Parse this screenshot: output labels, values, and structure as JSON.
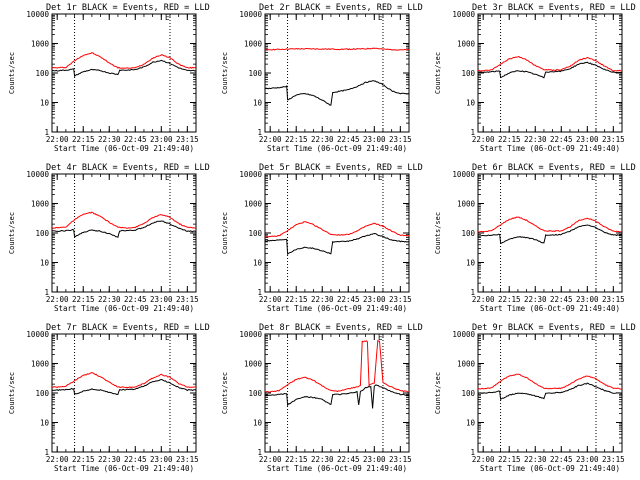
{
  "chart_data": [
    {
      "type": "line",
      "title": "Det 1r BLACK = Events, RED = LLD",
      "marker": "E",
      "xlabel": "Start Time (06-Oct-09 21:49:40)",
      "ylabel": "Counts/sec",
      "xticks": [
        "22:00",
        "22:15",
        "22:30",
        "22:45",
        "23:00",
        "23:15"
      ],
      "yticks": [
        "1",
        "10",
        "100",
        "1000",
        "10000"
      ],
      "yscale": "log",
      "ylim": [
        1,
        10000
      ],
      "xlim_min": [
        7,
        90
      ],
      "vlines_min": [
        20,
        75
      ],
      "series": [
        {
          "color": "#ff0000",
          "x": [
            7,
            10,
            15,
            20,
            25,
            30,
            35,
            40,
            45,
            50,
            55,
            60,
            65,
            70,
            75,
            80,
            85,
            90
          ],
          "y": [
            150,
            150,
            155,
            260,
            400,
            480,
            350,
            220,
            150,
            145,
            150,
            200,
            320,
            410,
            330,
            200,
            150,
            150
          ]
        },
        {
          "color": "#000000",
          "x": [
            7,
            10,
            15,
            19.5,
            20,
            25,
            30,
            35,
            40,
            45,
            46,
            50,
            55,
            60,
            65,
            70,
            75,
            80,
            85,
            90
          ],
          "y": [
            120,
            120,
            125,
            135,
            80,
            110,
            130,
            120,
            100,
            90,
            125,
            125,
            130,
            160,
            230,
            270,
            210,
            150,
            120,
            120
          ]
        }
      ]
    },
    {
      "type": "line",
      "title": "Det 2r BLACK = Events, RED = LLD",
      "marker": "E",
      "xlabel": "Start Time (06-Oct-09 21:49:40)",
      "ylabel": "Counts/sec",
      "xticks": [
        "22:00",
        "22:15",
        "22:30",
        "22:45",
        "23:00",
        "23:15"
      ],
      "yticks": [
        "1",
        "10",
        "100",
        "1000",
        "10000"
      ],
      "yscale": "log",
      "ylim": [
        1,
        10000
      ],
      "xlim_min": [
        7,
        90
      ],
      "vlines_min": [
        20,
        75
      ],
      "series": [
        {
          "color": "#ff0000",
          "x": [
            7,
            15,
            20,
            30,
            40,
            50,
            60,
            65,
            70,
            75,
            80,
            90
          ],
          "y": [
            620,
            630,
            650,
            660,
            650,
            640,
            650,
            660,
            700,
            640,
            620,
            610
          ]
        },
        {
          "color": "#000000",
          "x": [
            7,
            10,
            15,
            19.5,
            20,
            25,
            30,
            35,
            40,
            45,
            46,
            50,
            55,
            60,
            65,
            70,
            75,
            80,
            85,
            90
          ],
          "y": [
            30,
            30,
            32,
            35,
            12,
            18,
            20,
            17,
            12,
            8,
            22,
            24,
            27,
            35,
            48,
            55,
            40,
            25,
            20,
            20
          ]
        }
      ]
    },
    {
      "type": "line",
      "title": "Det 3r BLACK = Events, RED = LLD",
      "marker": "E",
      "xlabel": "Start Time (06-Oct-09 21:49:40)",
      "ylabel": "Counts/sec",
      "xticks": [
        "22:00",
        "22:15",
        "22:30",
        "22:45",
        "23:00",
        "23:15"
      ],
      "yticks": [
        "1",
        "10",
        "100",
        "1000",
        "10000"
      ],
      "yscale": "log",
      "ylim": [
        1,
        10000
      ],
      "xlim_min": [
        7,
        90
      ],
      "vlines_min": [
        20,
        75
      ],
      "series": [
        {
          "color": "#ff0000",
          "x": [
            7,
            10,
            15,
            20,
            25,
            30,
            35,
            40,
            45,
            50,
            55,
            60,
            65,
            70,
            75,
            80,
            85,
            90
          ],
          "y": [
            120,
            120,
            130,
            200,
            300,
            360,
            280,
            180,
            130,
            125,
            130,
            170,
            270,
            330,
            260,
            170,
            120,
            120
          ]
        },
        {
          "color": "#000000",
          "x": [
            7,
            10,
            15,
            19.5,
            20,
            25,
            30,
            35,
            40,
            45,
            46,
            50,
            55,
            60,
            65,
            70,
            75,
            80,
            85,
            90
          ],
          "y": [
            105,
            105,
            110,
            118,
            70,
            100,
            120,
            110,
            90,
            70,
            110,
            110,
            115,
            140,
            200,
            230,
            180,
            130,
            105,
            105
          ]
        }
      ]
    },
    {
      "type": "line",
      "title": "Det 4r BLACK = Events, RED = LLD",
      "marker": "E",
      "xlabel": "Start Time (06-Oct-09 21:49:40)",
      "ylabel": "Counts/sec",
      "xticks": [
        "22:00",
        "22:15",
        "22:30",
        "22:45",
        "23:00",
        "23:15"
      ],
      "yticks": [
        "1",
        "10",
        "100",
        "1000",
        "10000"
      ],
      "yscale": "log",
      "ylim": [
        1,
        10000
      ],
      "xlim_min": [
        7,
        90
      ],
      "vlines_min": [
        20,
        75
      ],
      "series": [
        {
          "color": "#ff0000",
          "x": [
            7,
            10,
            15,
            20,
            25,
            30,
            35,
            40,
            45,
            50,
            55,
            60,
            65,
            70,
            75,
            80,
            85,
            90
          ],
          "y": [
            150,
            150,
            160,
            280,
            430,
            500,
            360,
            230,
            155,
            150,
            155,
            210,
            330,
            420,
            340,
            210,
            155,
            150
          ]
        },
        {
          "color": "#000000",
          "x": [
            7,
            10,
            15,
            19.5,
            20,
            25,
            30,
            35,
            40,
            45,
            46,
            50,
            55,
            60,
            65,
            70,
            75,
            80,
            85,
            90
          ],
          "y": [
            115,
            115,
            120,
            130,
            75,
            105,
            125,
            115,
            95,
            70,
            120,
            120,
            125,
            155,
            220,
            260,
            200,
            145,
            115,
            115
          ]
        }
      ]
    },
    {
      "type": "line",
      "title": "Det 5r BLACK = Events, RED = LLD",
      "marker": "E",
      "xlabel": "Start Time (06-Oct-09 21:49:40)",
      "ylabel": "Counts/sec",
      "xticks": [
        "22:00",
        "22:15",
        "22:30",
        "22:45",
        "23:00",
        "23:15"
      ],
      "yticks": [
        "1",
        "10",
        "100",
        "1000",
        "10000"
      ],
      "yscale": "log",
      "ylim": [
        1,
        10000
      ],
      "xlim_min": [
        7,
        90
      ],
      "vlines_min": [
        20,
        75
      ],
      "series": [
        {
          "color": "#ff0000",
          "x": [
            7,
            10,
            15,
            20,
            25,
            30,
            35,
            40,
            45,
            50,
            55,
            60,
            65,
            70,
            75,
            80,
            85,
            90
          ],
          "y": [
            75,
            75,
            80,
            120,
            190,
            240,
            190,
            130,
            90,
            85,
            90,
            115,
            170,
            210,
            170,
            115,
            85,
            80
          ]
        },
        {
          "color": "#000000",
          "x": [
            7,
            10,
            15,
            19.5,
            20,
            25,
            30,
            35,
            40,
            45,
            46,
            50,
            55,
            60,
            65,
            70,
            75,
            80,
            85,
            90
          ],
          "y": [
            55,
            55,
            58,
            62,
            20,
            28,
            33,
            30,
            25,
            20,
            50,
            50,
            53,
            62,
            80,
            95,
            75,
            58,
            52,
            50
          ]
        }
      ]
    },
    {
      "type": "line",
      "title": "Det 6r BLACK = Events, RED = LLD",
      "marker": "E",
      "xlabel": "Start Time (06-Oct-09 21:49:40)",
      "ylabel": "Counts/sec",
      "xticks": [
        "22:00",
        "22:15",
        "22:30",
        "22:45",
        "23:00",
        "23:15"
      ],
      "yticks": [
        "1",
        "10",
        "100",
        "1000",
        "10000"
      ],
      "yscale": "log",
      "ylim": [
        1,
        10000
      ],
      "xlim_min": [
        7,
        90
      ],
      "vlines_min": [
        20,
        75
      ],
      "series": [
        {
          "color": "#ff0000",
          "x": [
            7,
            10,
            15,
            20,
            25,
            30,
            35,
            40,
            45,
            50,
            55,
            60,
            65,
            70,
            75,
            80,
            85,
            90
          ],
          "y": [
            110,
            110,
            120,
            190,
            290,
            350,
            270,
            175,
            120,
            115,
            120,
            160,
            260,
            320,
            250,
            160,
            115,
            110
          ]
        },
        {
          "color": "#000000",
          "x": [
            7,
            10,
            15,
            19.5,
            20,
            25,
            30,
            35,
            40,
            45,
            46,
            50,
            55,
            60,
            65,
            70,
            75,
            80,
            85,
            90
          ],
          "y": [
            80,
            80,
            85,
            90,
            45,
            60,
            75,
            70,
            60,
            45,
            85,
            85,
            90,
            115,
            160,
            190,
            150,
            105,
            85,
            85
          ]
        }
      ]
    },
    {
      "type": "line",
      "title": "Det 7r BLACK = Events, RED = LLD",
      "marker": "E",
      "xlabel": "Start Time (06-Oct-09 21:49:40)",
      "ylabel": "Counts/sec",
      "xticks": [
        "22:00",
        "22:15",
        "22:30",
        "22:45",
        "23:00",
        "23:15"
      ],
      "yticks": [
        "1",
        "10",
        "100",
        "1000",
        "10000"
      ],
      "yscale": "log",
      "ylim": [
        1,
        10000
      ],
      "xlim_min": [
        7,
        90
      ],
      "vlines_min": [
        20,
        75
      ],
      "series": [
        {
          "color": "#ff0000",
          "x": [
            7,
            10,
            15,
            20,
            25,
            30,
            35,
            40,
            45,
            50,
            55,
            60,
            65,
            70,
            75,
            80,
            85,
            90
          ],
          "y": [
            160,
            160,
            170,
            260,
            400,
            480,
            360,
            230,
            160,
            155,
            160,
            210,
            320,
            420,
            340,
            210,
            160,
            160
          ]
        },
        {
          "color": "#000000",
          "x": [
            7,
            10,
            15,
            19.5,
            20,
            25,
            30,
            35,
            40,
            45,
            46,
            50,
            55,
            60,
            65,
            70,
            75,
            80,
            85,
            90
          ],
          "y": [
            125,
            125,
            130,
            140,
            90,
            115,
            135,
            125,
            105,
            90,
            130,
            130,
            135,
            170,
            240,
            280,
            220,
            155,
            125,
            125
          ]
        }
      ]
    },
    {
      "type": "line",
      "title": "Det 8r BLACK = Events, RED = LLD",
      "marker": "E",
      "xlabel": "Start Time (06-Oct-09 21:49:40)",
      "ylabel": "Counts/sec",
      "xticks": [
        "22:00",
        "22:15",
        "22:30",
        "22:45",
        "23:00",
        "23:15"
      ],
      "yticks": [
        "1",
        "10",
        "100",
        "1000",
        "10000"
      ],
      "yscale": "log",
      "ylim": [
        1,
        10000
      ],
      "xlim_min": [
        7,
        90
      ],
      "vlines_min": [
        20,
        75
      ],
      "series": [
        {
          "color": "#ff0000",
          "x": [
            7,
            10,
            15,
            20,
            25,
            30,
            35,
            40,
            45,
            50,
            55,
            60,
            62,
            63,
            65,
            66,
            67,
            68,
            70,
            72,
            73,
            75,
            80,
            85,
            90
          ],
          "y": [
            110,
            110,
            120,
            190,
            290,
            340,
            270,
            175,
            120,
            115,
            140,
            160,
            180,
            5500,
            5800,
            5600,
            180,
            200,
            220,
            6000,
            5700,
            220,
            160,
            120,
            110
          ]
        },
        {
          "color": "#000000",
          "x": [
            7,
            10,
            15,
            19.5,
            20,
            25,
            30,
            35,
            40,
            45,
            46,
            50,
            55,
            60,
            61,
            62,
            63,
            65,
            68,
            69,
            70,
            71,
            75,
            80,
            85,
            90
          ],
          "y": [
            85,
            85,
            90,
            95,
            40,
            60,
            75,
            70,
            60,
            40,
            90,
            90,
            95,
            110,
            40,
            110,
            120,
            150,
            170,
            30,
            170,
            190,
            150,
            110,
            90,
            85
          ]
        }
      ]
    },
    {
      "type": "line",
      "title": "Det 9r BLACK = Events, RED = LLD",
      "marker": "E",
      "xlabel": "Start Time (06-Oct-09 21:49:40)",
      "ylabel": "Counts/sec",
      "xticks": [
        "22:00",
        "22:15",
        "22:30",
        "22:45",
        "23:00",
        "23:15"
      ],
      "yticks": [
        "1",
        "10",
        "100",
        "1000",
        "10000"
      ],
      "yscale": "log",
      "ylim": [
        1,
        10000
      ],
      "xlim_min": [
        7,
        90
      ],
      "vlines_min": [
        20,
        75
      ],
      "series": [
        {
          "color": "#ff0000",
          "x": [
            7,
            10,
            15,
            20,
            25,
            30,
            35,
            40,
            45,
            50,
            55,
            60,
            65,
            70,
            75,
            80,
            85,
            90
          ],
          "y": [
            140,
            140,
            150,
            250,
            380,
            440,
            330,
            210,
            145,
            140,
            145,
            195,
            300,
            380,
            300,
            195,
            145,
            140
          ]
        },
        {
          "color": "#000000",
          "x": [
            7,
            10,
            15,
            19.5,
            20,
            25,
            30,
            35,
            40,
            45,
            46,
            50,
            55,
            60,
            65,
            70,
            75,
            80,
            85,
            90
          ],
          "y": [
            100,
            100,
            105,
            115,
            60,
            85,
            100,
            95,
            80,
            65,
            100,
            100,
            105,
            130,
            180,
            210,
            165,
            120,
            100,
            100
          ]
        }
      ]
    }
  ]
}
